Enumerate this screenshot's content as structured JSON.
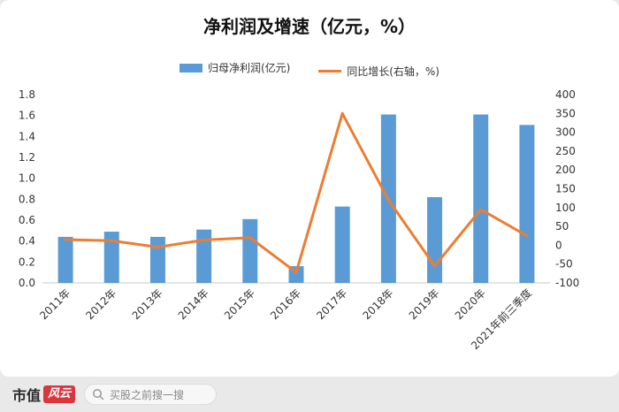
{
  "chart_data": {
    "type": "bar+line",
    "title": "净利润及增速（亿元，%）",
    "categories": [
      "2011年",
      "2012年",
      "2013年",
      "2014年",
      "2015年",
      "2016年",
      "2017年",
      "2018年",
      "2019年",
      "2020年",
      "2021年前三季度"
    ],
    "series": [
      {
        "name": "归母净利润(亿元)",
        "type": "bar",
        "axis": "left",
        "color": "#5b9bd5",
        "values": [
          0.44,
          0.49,
          0.44,
          0.51,
          0.61,
          0.16,
          0.73,
          1.61,
          0.82,
          1.61,
          1.51
        ]
      },
      {
        "name": "同比增长(右轴，%)",
        "type": "line",
        "axis": "right",
        "color": "#ed7d31",
        "values": [
          15,
          12,
          -5,
          14,
          20,
          -72,
          350,
          120,
          -55,
          95,
          25
        ]
      }
    ],
    "y_left": {
      "min": 0,
      "max": 1.8,
      "step": 0.2,
      "ticks": [
        "0.0",
        "0.2",
        "0.4",
        "0.6",
        "0.8",
        "1.0",
        "1.2",
        "1.4",
        "1.6",
        "1.8"
      ]
    },
    "y_right": {
      "min": -100,
      "max": 400,
      "step": 50,
      "ticks": [
        "-100",
        "-50",
        "0",
        "50",
        "100",
        "150",
        "200",
        "250",
        "300",
        "350",
        "400"
      ]
    },
    "legend_position": "top",
    "grid": false
  },
  "footer": {
    "brand_text": "市值",
    "brand_logo_text": "风云",
    "search_placeholder": "买股之前搜一搜"
  }
}
